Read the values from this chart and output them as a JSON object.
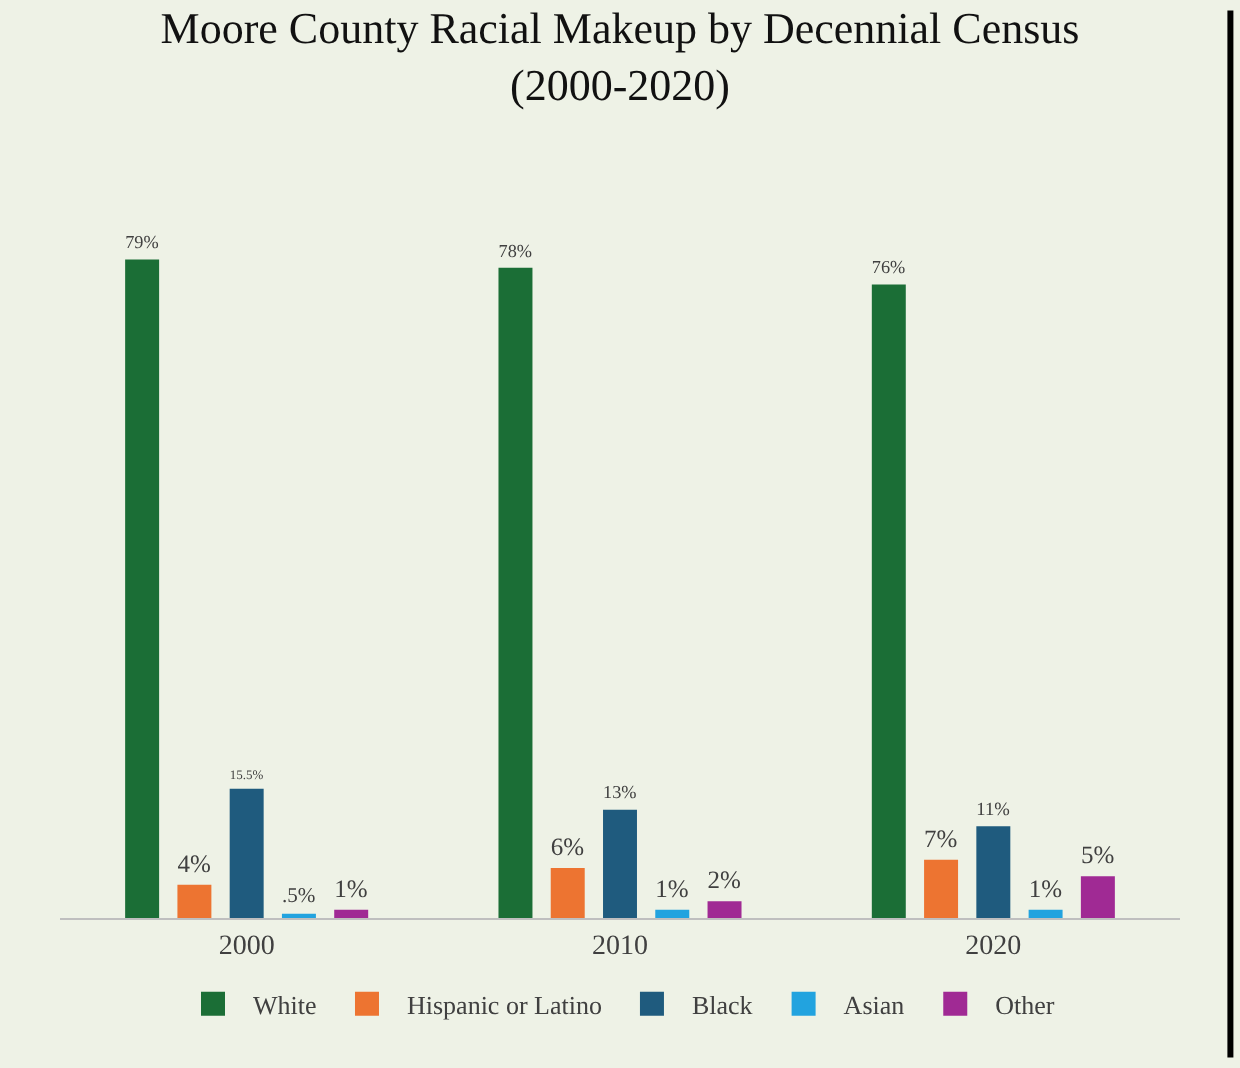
{
  "chart_data": {
    "type": "bar",
    "title": "Moore County Racial Makeup by Decennial Census\n(2000-2020)",
    "categories": [
      "2000",
      "2010",
      "2020"
    ],
    "series": [
      {
        "name": "White",
        "color": "#1b6e36",
        "values": [
          79,
          78,
          76
        ],
        "value_labels": [
          "79%",
          "78%",
          "76%"
        ]
      },
      {
        "name": "Hispanic or Latino",
        "color": "#ed7431",
        "values": [
          4,
          6,
          7
        ],
        "value_labels": [
          "4%",
          "6%",
          "7%"
        ]
      },
      {
        "name": "Black",
        "color": "#1f5b7e",
        "values": [
          15.5,
          13,
          11
        ],
        "value_labels": [
          "15.5%",
          "13%",
          "11%"
        ]
      },
      {
        "name": "Asian",
        "color": "#22a3df",
        "values": [
          0.5,
          1,
          1
        ],
        "value_labels": [
          ".5%",
          "1%",
          "1%"
        ]
      },
      {
        "name": "Other",
        "color": "#a02a94",
        "values": [
          1,
          2,
          5
        ],
        "value_labels": [
          "1%",
          "2%",
          "5%"
        ]
      }
    ],
    "legend": "bottom",
    "grid": false
  }
}
